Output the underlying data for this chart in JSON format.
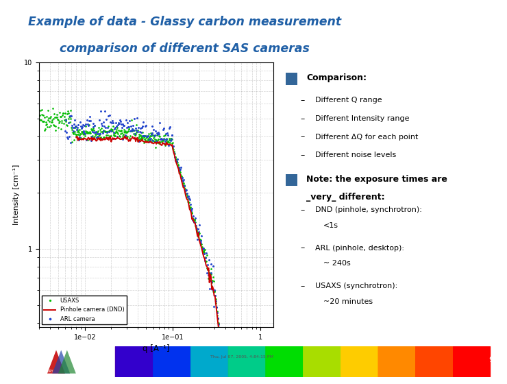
{
  "title_line1": "Example of data - Glassy carbon measurement",
  "title_line2": "comparison of different SAS cameras",
  "title_color": "#1F5FA6",
  "xlabel": "q [A⁻¹]",
  "ylabel": "Intensity [cm⁻¹]",
  "timestamp": "Thu, Jul 07, 2005, 4:84:15 PM",
  "page_number": "9",
  "comparison_title": "Comparison:",
  "comparison_bullets": [
    "Different Q range",
    "Different Intensity range",
    "Different ΔQ for each point",
    "Different noise levels"
  ],
  "legend_labels": [
    "Pinhole camera (DND)",
    "ARL camera",
    "USAXS"
  ],
  "legend_colors": [
    "#CC0000",
    "#2244CC",
    "#00BB00"
  ],
  "square_color": "#336699",
  "note_line1": "Note: the exposure times are",
  "note_line2": "_very_ different:",
  "note_bullets": [
    [
      "DND (pinhole, synchrotron):",
      "<1s"
    ],
    [
      "ARL (pinhole, desktop):",
      "~ 240s"
    ],
    [
      "USAXS (synchrotron):",
      "~20 minutes"
    ]
  ],
  "rainbow_colors": [
    "#5500AA",
    "#3300CC",
    "#0033EE",
    "#00AACC",
    "#00CC88",
    "#00DD00",
    "#AADD00",
    "#FFCC00",
    "#FF8800",
    "#FF4400",
    "#FF0000"
  ]
}
